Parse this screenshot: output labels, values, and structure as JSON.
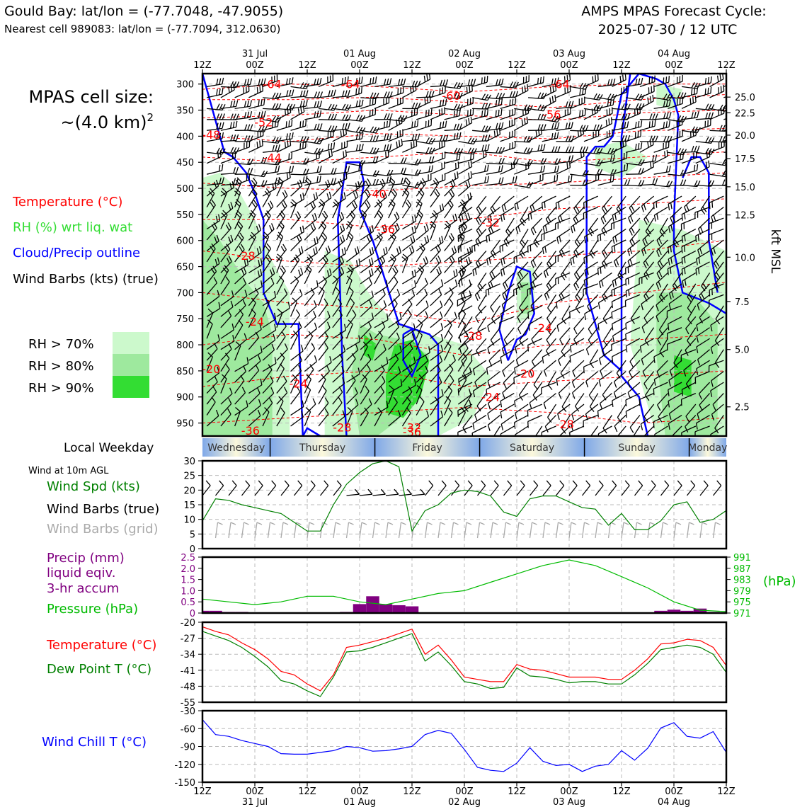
{
  "header": {
    "location_title": "Gould Bay: lat/lon = (-77.7048, -47.9055)",
    "nearest_cell": "Nearest cell 989083: lat/lon = (-77.7094, 312.0630)",
    "model_title": "AMPS MPAS Forecast Cycle:",
    "cycle": "2025-07-30 / 12 UTC"
  },
  "left_legend": {
    "cell_size_label": "MPAS cell size:",
    "cell_size_value": "~(4.0 km)",
    "cell_size_sup": "2",
    "temperature": "Temperature (°C)",
    "rh": "RH (%) wrt liq. wat",
    "cloud": "Cloud/Precip outline",
    "wind_barbs": "Wind Barbs (kts) (true)",
    "rh_levels": [
      "RH > 70%",
      "RH > 80%",
      "RH > 90%"
    ],
    "rh_colors": [
      "#ccf9cc",
      "#9ee99e",
      "#33dd33"
    ]
  },
  "colors": {
    "temperature": "#ff0000",
    "rh": "#33cc33",
    "cloud": "#0000ff",
    "precip": "#800080",
    "pressure": "#00bb00",
    "dewpoint": "#008000",
    "windchill": "#0000ff",
    "wind_speed": "#008000",
    "grid_barbs": "#aaaaaa"
  },
  "time_axis": {
    "ticks": [
      "12Z",
      "00Z",
      "12Z",
      "00Z",
      "12Z",
      "00Z",
      "12Z",
      "00Z",
      "12Z",
      "00Z",
      "12Z"
    ],
    "dates": [
      "31 Jul",
      "01 Aug",
      "02 Aug",
      "03 Aug",
      "04 Aug"
    ]
  },
  "weekday": {
    "label": "Local Weekday",
    "days": [
      "Wednesday",
      "Thursday",
      "Friday",
      "Saturday",
      "Sunday",
      "Monday"
    ]
  },
  "xsection": {
    "pressure_ticks": [
      300,
      350,
      400,
      450,
      500,
      550,
      600,
      650,
      700,
      750,
      800,
      850,
      900,
      950
    ],
    "kft_ticks": [
      "25.0",
      "22.5",
      "20.0",
      "17.5",
      "15.0",
      "12.5",
      "10.0",
      "7.5",
      "5.0",
      "2.5"
    ],
    "kft_pressures": [
      325,
      355,
      398,
      443,
      497,
      551,
      632,
      717,
      809,
      919
    ],
    "kft_label": "kft MSL",
    "temp_labels": [
      {
        "t": "-64",
        "h": 16,
        "p": 300
      },
      {
        "t": "-64",
        "h": 34,
        "p": 300
      },
      {
        "t": "-60",
        "h": 57,
        "p": 322
      },
      {
        "t": "-64",
        "h": 82,
        "p": 300
      },
      {
        "t": "-56",
        "h": 80,
        "p": 358
      },
      {
        "t": "-52",
        "h": 14,
        "p": 373
      },
      {
        "t": "-48",
        "h": 2,
        "p": 397
      },
      {
        "t": "-44",
        "h": 16,
        "p": 441
      },
      {
        "t": "-40",
        "h": 40,
        "p": 510
      },
      {
        "t": "-36",
        "h": 42,
        "p": 578
      },
      {
        "t": "-32",
        "h": 66,
        "p": 565
      },
      {
        "t": "-28",
        "h": 10,
        "p": 629
      },
      {
        "t": "-28",
        "h": 62,
        "p": 782
      },
      {
        "t": "-24",
        "h": 12,
        "p": 755
      },
      {
        "t": "-24",
        "h": 78,
        "p": 767
      },
      {
        "t": "-24",
        "h": 22,
        "p": 874
      },
      {
        "t": "-24",
        "h": 66,
        "p": 900
      },
      {
        "t": "-20",
        "h": 2,
        "p": 846
      },
      {
        "t": "-20",
        "h": 74,
        "p": 855
      },
      {
        "t": "-28",
        "h": 32,
        "p": 958
      },
      {
        "t": "-28",
        "h": 83,
        "p": 952
      },
      {
        "t": "-32",
        "h": 48,
        "p": 958
      },
      {
        "t": "-36",
        "h": 11,
        "p": 964
      },
      {
        "t": "-36",
        "h": 48,
        "p": 967
      }
    ]
  },
  "panels": {
    "wind": {
      "title": "Wind at 10m AGL",
      "speed_label": "Wind Spd (kts)",
      "barbs_true_label": "Wind Barbs (true)",
      "barbs_grid_label": "Wind Barbs (grid)",
      "y_ticks": [
        0,
        5,
        10,
        15,
        20,
        25,
        30
      ]
    },
    "precip": {
      "label1": "Precip (mm)",
      "label2": "liquid eqiv.",
      "label3": "3-hr accum",
      "pressure_label": "Pressure (hPa)",
      "y_ticks": [
        "0",
        "0.5",
        "1.0",
        "1.5",
        "2.0",
        "2.5"
      ],
      "p_ticks": [
        "991",
        "987",
        "983",
        "979",
        "975",
        "971"
      ],
      "p_unit": "(hPa)"
    },
    "temp": {
      "temp_label": "Temperature (°C)",
      "dew_label": "Dew Point T (°C)",
      "y_ticks": [
        -20,
        -27,
        -34,
        -41,
        -48,
        -55
      ]
    },
    "windchill": {
      "label": "Wind Chill T (°C)",
      "y_ticks": [
        -30,
        -60,
        -90,
        -120,
        -150
      ]
    }
  },
  "chart_data": [
    {
      "type": "line",
      "title": "Wind at 10m AGL",
      "xlabel": "",
      "ylabel": "Wind Spd (kts)",
      "ylim": [
        0,
        30
      ],
      "x_hours": [
        0,
        3,
        6,
        9,
        12,
        15,
        18,
        21,
        24,
        27,
        30,
        33,
        36,
        39,
        42,
        45,
        48,
        51,
        54,
        57,
        60,
        63,
        66,
        69,
        72,
        75,
        78,
        81,
        84,
        87,
        90,
        93,
        96,
        99,
        102,
        105,
        108,
        111,
        114,
        117,
        120
      ],
      "series": [
        {
          "name": "Wind Spd (kts)",
          "values": [
            9.5,
            17,
            16.5,
            15,
            14,
            13,
            12,
            9,
            6,
            6,
            15,
            22,
            26,
            29,
            30,
            28,
            6,
            13,
            15,
            19,
            20,
            19.5,
            18,
            12.5,
            11,
            17,
            18,
            18,
            16,
            14,
            13.5,
            8,
            12,
            6.5,
            6.5,
            9.5,
            15,
            16,
            9,
            10,
            13
          ]
        }
      ]
    },
    {
      "type": "bar",
      "title": "Precip (mm) liquid eqiv. 3-hr accum",
      "ylabel": "Precip (mm)",
      "ylim": [
        0,
        2.5
      ],
      "x_hours": [
        0,
        3,
        6,
        9,
        12,
        15,
        18,
        21,
        24,
        27,
        30,
        33,
        36,
        39,
        42,
        45,
        48,
        51,
        54,
        57,
        60,
        63,
        66,
        69,
        72,
        75,
        78,
        81,
        84,
        87,
        90,
        93,
        96,
        99,
        102,
        105,
        108,
        111,
        114,
        117,
        120
      ],
      "values": [
        0.1,
        0.1,
        0.05,
        0.05,
        0,
        0,
        0,
        0,
        0,
        0,
        0,
        0.05,
        0.4,
        0.75,
        0.4,
        0.35,
        0.3,
        0,
        0,
        0,
        0,
        0,
        0,
        0,
        0,
        0,
        0,
        0,
        0,
        0,
        0,
        0,
        0,
        0,
        0,
        0.1,
        0.15,
        0.1,
        0.2,
        0.05,
        0
      ]
    },
    {
      "type": "line",
      "title": "Pressure (hPa)",
      "ylabel": "Pressure (hPa)",
      "ylim": [
        971,
        991
      ],
      "x_hours": [
        0,
        6,
        12,
        18,
        24,
        30,
        36,
        42,
        48,
        54,
        60,
        66,
        72,
        78,
        84,
        90,
        96,
        102,
        108,
        114,
        120
      ],
      "series": [
        {
          "name": "Pressure (hPa)",
          "values": [
            976,
            975,
            974,
            975,
            977,
            977,
            975,
            974,
            976,
            978,
            979,
            982,
            985,
            988,
            990,
            988,
            984,
            980,
            975,
            972,
            971.5
          ]
        }
      ]
    },
    {
      "type": "line",
      "title": "Temperature and Dew Point",
      "ylabel": "°C",
      "ylim": [
        -55,
        -20
      ],
      "x_hours": [
        0,
        3,
        6,
        9,
        12,
        15,
        18,
        21,
        24,
        27,
        30,
        33,
        36,
        39,
        42,
        45,
        48,
        51,
        54,
        57,
        60,
        63,
        66,
        69,
        72,
        75,
        78,
        81,
        84,
        87,
        90,
        93,
        96,
        99,
        102,
        105,
        108,
        111,
        114,
        117,
        120
      ],
      "series": [
        {
          "name": "Temperature (°C)",
          "values": [
            -22,
            -24,
            -25.5,
            -29,
            -32,
            -36,
            -41.5,
            -43,
            -47,
            -50,
            -43,
            -31,
            -30,
            -28.5,
            -27,
            -25,
            -23,
            -34,
            -30,
            -36.5,
            -44,
            -45,
            -46,
            -46,
            -38.5,
            -40.5,
            -41,
            -42.5,
            -44,
            -44,
            -44,
            -45,
            -45,
            -41,
            -36,
            -29.5,
            -29,
            -27.5,
            -28,
            -31,
            -39
          ]
        },
        {
          "name": "Dew Point T (°C)",
          "values": [
            -24,
            -26,
            -28,
            -31,
            -35,
            -39.5,
            -45.5,
            -47,
            -50,
            -52.5,
            -44,
            -33,
            -32.5,
            -31,
            -29,
            -27,
            -25,
            -37,
            -33,
            -39,
            -46,
            -47,
            -49,
            -48.5,
            -40,
            -43.5,
            -44,
            -45,
            -46.5,
            -46,
            -46,
            -47,
            -47,
            -43,
            -38,
            -32,
            -31,
            -30,
            -31,
            -34,
            -42
          ]
        }
      ]
    },
    {
      "type": "line",
      "title": "Wind Chill T (°C)",
      "ylabel": "Wind Chill T (°C)",
      "ylim": [
        -150,
        -30
      ],
      "x_hours": [
        0,
        3,
        6,
        9,
        12,
        15,
        18,
        21,
        24,
        27,
        30,
        33,
        36,
        39,
        42,
        45,
        48,
        51,
        54,
        57,
        60,
        63,
        66,
        69,
        72,
        75,
        78,
        81,
        84,
        87,
        90,
        93,
        96,
        99,
        102,
        105,
        108,
        111,
        114,
        117,
        120
      ],
      "series": [
        {
          "name": "Wind Chill T (°C)",
          "values": [
            -45,
            -70,
            -73,
            -80,
            -85,
            -90,
            -102,
            -103,
            -103,
            -100,
            -97,
            -90,
            -92,
            -98,
            -97,
            -94,
            -90,
            -70,
            -63,
            -68,
            -95,
            -125,
            -130,
            -132,
            -118,
            -92,
            -115,
            -122,
            -120,
            -132,
            -123,
            -120,
            -97,
            -113,
            -93,
            -59,
            -50,
            -73,
            -76,
            -65,
            -100
          ]
        }
      ]
    }
  ]
}
